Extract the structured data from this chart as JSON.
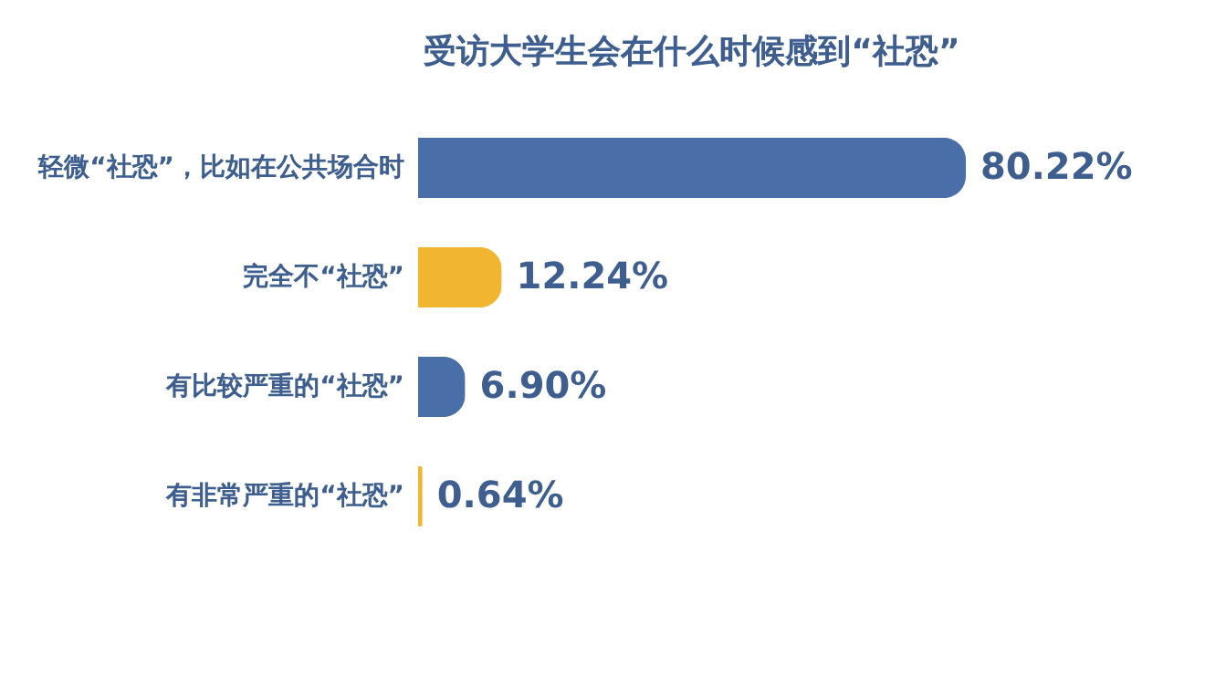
{
  "chart_data": {
    "type": "bar",
    "orientation": "horizontal",
    "title": "受访大学生会在什么时候感到“社恐”",
    "categories": [
      "轻微“社恐”，比如在公共场合时",
      "完全不“社恐”",
      "有比较严重的“社恐”",
      "有非常严重的“社恐”"
    ],
    "values": [
      80.22,
      12.24,
      6.9,
      0.64
    ],
    "value_labels": [
      "80.22%",
      "12.24%",
      "6.90%",
      "0.64%"
    ],
    "colors": [
      "#4a6fa8",
      "#f2b52f",
      "#4a6fa8",
      "#f2b52f"
    ]
  }
}
